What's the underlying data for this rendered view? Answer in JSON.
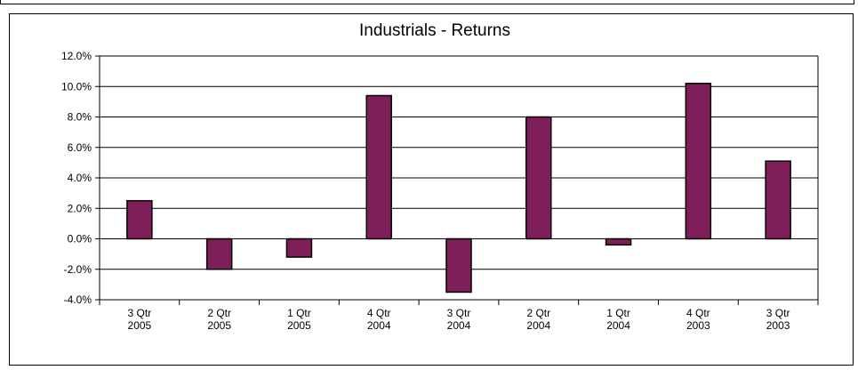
{
  "chart_data": {
    "type": "bar",
    "title": "Industrials  -  Returns",
    "categories": [
      [
        "3 Qtr",
        "2005"
      ],
      [
        "2 Qtr",
        "2005"
      ],
      [
        "1 Qtr",
        "2005"
      ],
      [
        "4 Qtr",
        "2004"
      ],
      [
        "3 Qtr",
        "2004"
      ],
      [
        "2 Qtr",
        "2004"
      ],
      [
        "1 Qtr",
        "2004"
      ],
      [
        "4 Qtr",
        "2003"
      ],
      [
        "3 Qtr",
        "2003"
      ]
    ],
    "values": [
      2.5,
      -2.0,
      -1.2,
      9.4,
      -3.5,
      8.0,
      -0.4,
      10.2,
      5.1
    ],
    "ylim": [
      -4,
      12
    ],
    "yticks": [
      12,
      10,
      8,
      6,
      4,
      2,
      0,
      -2,
      -4
    ],
    "ytick_labels": [
      "12.0%",
      "10.0%",
      "8.0%",
      "6.0%",
      "4.0%",
      "2.0%",
      "0.0%",
      "-2.0%",
      "-4.0%"
    ],
    "xlabel": "",
    "ylabel": "",
    "grid": true,
    "legend": "none",
    "bar_color": "#7f1f5a"
  }
}
